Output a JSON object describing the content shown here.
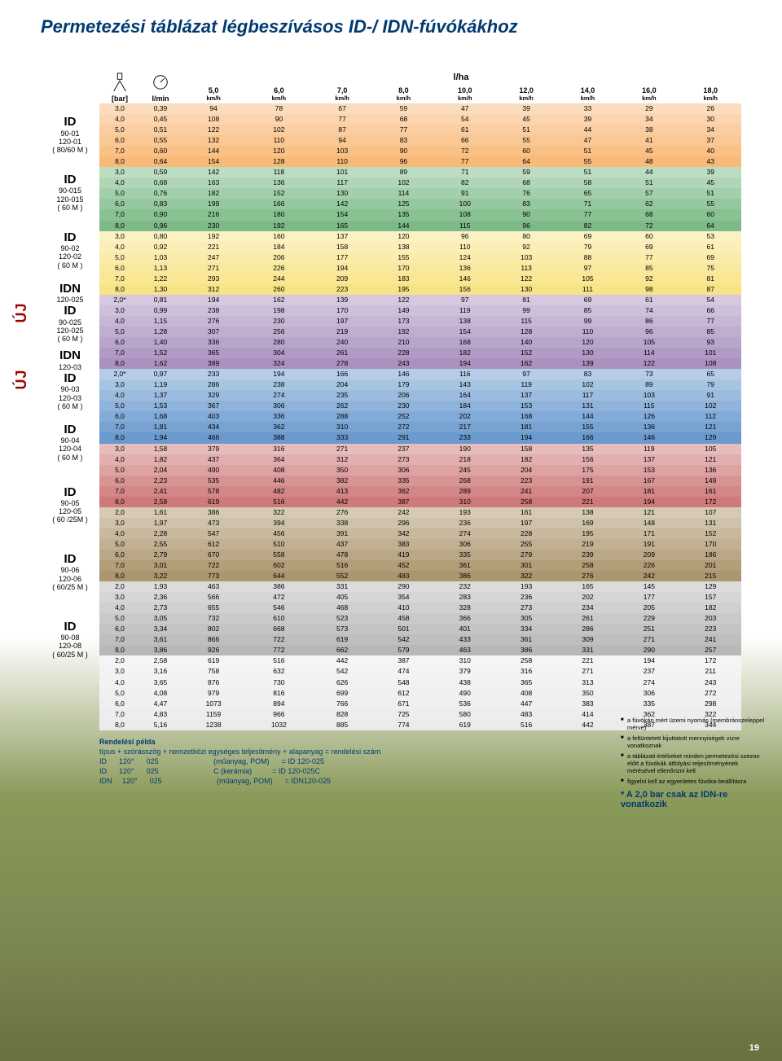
{
  "title": "Permetezési táblázat légbeszívásos ID-/ IDN-fúvókákhoz",
  "table": {
    "header": {
      "unit_bar": "[bar]",
      "unit_lmin": "l/min",
      "unit_lha": "l/ha",
      "speeds": [
        "5,0",
        "6,0",
        "7,0",
        "8,0",
        "10,0",
        "12,0",
        "14,0",
        "16,0",
        "18,0"
      ],
      "kmh": "km/h"
    },
    "groups": [
      {
        "id": "ID",
        "sub1": "90-01",
        "sub2": "120-01",
        "mesh": "( 80/60 M )",
        "color": "#f7b26a",
        "rows": [
          [
            "3,0",
            "0,39",
            "94",
            "78",
            "67",
            "59",
            "47",
            "39",
            "33",
            "29",
            "26"
          ],
          [
            "4,0",
            "0,45",
            "108",
            "90",
            "77",
            "68",
            "54",
            "45",
            "39",
            "34",
            "30"
          ],
          [
            "5,0",
            "0,51",
            "122",
            "102",
            "87",
            "77",
            "61",
            "51",
            "44",
            "38",
            "34"
          ],
          [
            "6,0",
            "0,55",
            "132",
            "110",
            "94",
            "83",
            "66",
            "55",
            "47",
            "41",
            "37"
          ],
          [
            "7,0",
            "0,60",
            "144",
            "120",
            "103",
            "90",
            "72",
            "60",
            "51",
            "45",
            "40"
          ],
          [
            "8,0",
            "0,64",
            "154",
            "128",
            "110",
            "96",
            "77",
            "64",
            "55",
            "48",
            "43"
          ]
        ]
      },
      {
        "id": "ID",
        "sub1": "90-015",
        "sub2": "120-015",
        "mesh": "( 60 M )",
        "color": "#6db37a",
        "rows": [
          [
            "3,0",
            "0,59",
            "142",
            "118",
            "101",
            "89",
            "71",
            "59",
            "51",
            "44",
            "39"
          ],
          [
            "4,0",
            "0,68",
            "163",
            "136",
            "117",
            "102",
            "82",
            "68",
            "58",
            "51",
            "45"
          ],
          [
            "5,0",
            "0,76",
            "182",
            "152",
            "130",
            "114",
            "91",
            "76",
            "65",
            "57",
            "51"
          ],
          [
            "6,0",
            "0,83",
            "199",
            "166",
            "142",
            "125",
            "100",
            "83",
            "71",
            "62",
            "55"
          ],
          [
            "7,0",
            "0,90",
            "216",
            "180",
            "154",
            "135",
            "108",
            "90",
            "77",
            "68",
            "60"
          ],
          [
            "8,0",
            "0,96",
            "230",
            "192",
            "165",
            "144",
            "115",
            "96",
            "82",
            "72",
            "64"
          ]
        ]
      },
      {
        "id": "ID",
        "sub1": "90-02",
        "sub2": "120-02",
        "mesh": "( 60 M )",
        "color": "#f7e17a",
        "rows": [
          [
            "3,0",
            "0,80",
            "192",
            "160",
            "137",
            "120",
            "96",
            "80",
            "69",
            "60",
            "53"
          ],
          [
            "4,0",
            "0,92",
            "221",
            "184",
            "158",
            "138",
            "110",
            "92",
            "79",
            "69",
            "61"
          ],
          [
            "5,0",
            "1,03",
            "247",
            "206",
            "177",
            "155",
            "124",
            "103",
            "88",
            "77",
            "69"
          ],
          [
            "6,0",
            "1,13",
            "271",
            "226",
            "194",
            "170",
            "136",
            "113",
            "97",
            "85",
            "75"
          ],
          [
            "7,0",
            "1,22",
            "293",
            "244",
            "209",
            "183",
            "146",
            "122",
            "105",
            "92",
            "81"
          ],
          [
            "8,0",
            "1,30",
            "312",
            "260",
            "223",
            "195",
            "156",
            "130",
            "111",
            "98",
            "87"
          ]
        ]
      },
      {
        "id": "IDN",
        "sub1": "120-025",
        "sub2": "ID",
        "sub3": "90-025",
        "sub4": "120-025",
        "mesh": "( 60 M )",
        "color": "#a185b8",
        "uj": true,
        "rows": [
          [
            "2,0*",
            "0,81",
            "194",
            "162",
            "139",
            "122",
            "97",
            "81",
            "69",
            "61",
            "54"
          ],
          [
            "3,0",
            "0,99",
            "238",
            "198",
            "170",
            "149",
            "119",
            "99",
            "85",
            "74",
            "66"
          ],
          [
            "4,0",
            "1,15",
            "276",
            "230",
            "197",
            "173",
            "138",
            "115",
            "99",
            "86",
            "77"
          ],
          [
            "5,0",
            "1,28",
            "307",
            "256",
            "219",
            "192",
            "154",
            "128",
            "110",
            "96",
            "85"
          ],
          [
            "6,0",
            "1,40",
            "336",
            "280",
            "240",
            "210",
            "168",
            "140",
            "120",
            "105",
            "93"
          ],
          [
            "7,0",
            "1,52",
            "365",
            "304",
            "261",
            "228",
            "182",
            "152",
            "130",
            "114",
            "101"
          ],
          [
            "8,0",
            "1,62",
            "389",
            "324",
            "278",
            "243",
            "194",
            "162",
            "139",
            "122",
            "108"
          ]
        ]
      },
      {
        "id": "IDN",
        "sub1": "120-03",
        "sub2": "ID",
        "sub3": "90-03",
        "sub4": "120-03",
        "mesh": "( 60 M )",
        "color": "#5a8fc9",
        "uj": true,
        "rows": [
          [
            "2,0*",
            "0,97",
            "233",
            "194",
            "166",
            "146",
            "116",
            "97",
            "83",
            "73",
            "65"
          ],
          [
            "3,0",
            "1,19",
            "286",
            "238",
            "204",
            "179",
            "143",
            "119",
            "102",
            "89",
            "79"
          ],
          [
            "4,0",
            "1,37",
            "329",
            "274",
            "235",
            "206",
            "164",
            "137",
            "117",
            "103",
            "91"
          ],
          [
            "5,0",
            "1,53",
            "367",
            "306",
            "262",
            "230",
            "184",
            "153",
            "131",
            "115",
            "102"
          ],
          [
            "6,0",
            "1,68",
            "403",
            "336",
            "288",
            "252",
            "202",
            "168",
            "144",
            "126",
            "112"
          ],
          [
            "7,0",
            "1,81",
            "434",
            "362",
            "310",
            "272",
            "217",
            "181",
            "155",
            "136",
            "121"
          ],
          [
            "8,0",
            "1,94",
            "466",
            "388",
            "333",
            "291",
            "233",
            "194",
            "166",
            "146",
            "129"
          ]
        ]
      },
      {
        "id": "ID",
        "sub1": "90-04",
        "sub2": "120-04",
        "mesh": "( 60 M )",
        "color": "#c96b6b",
        "rows": [
          [
            "3,0",
            "1,58",
            "379",
            "316",
            "271",
            "237",
            "190",
            "158",
            "135",
            "119",
            "105"
          ],
          [
            "4,0",
            "1,82",
            "437",
            "364",
            "312",
            "273",
            "218",
            "182",
            "156",
            "137",
            "121"
          ],
          [
            "5,0",
            "2,04",
            "490",
            "408",
            "350",
            "306",
            "245",
            "204",
            "175",
            "153",
            "136"
          ],
          [
            "6,0",
            "2,23",
            "535",
            "446",
            "382",
            "335",
            "268",
            "223",
            "191",
            "167",
            "149"
          ],
          [
            "7,0",
            "2,41",
            "578",
            "482",
            "413",
            "362",
            "289",
            "241",
            "207",
            "181",
            "161"
          ],
          [
            "8,0",
            "2,58",
            "619",
            "516",
            "442",
            "387",
            "310",
            "258",
            "221",
            "194",
            "172"
          ]
        ]
      },
      {
        "id": "ID",
        "sub1": "90-05",
        "sub2": "120-05",
        "mesh": "( 60 /25M )",
        "color": "#a38a5e",
        "rows": [
          [
            "2,0",
            "1,61",
            "386",
            "322",
            "276",
            "242",
            "193",
            "161",
            "138",
            "121",
            "107"
          ],
          [
            "3,0",
            "1,97",
            "473",
            "394",
            "338",
            "296",
            "236",
            "197",
            "169",
            "148",
            "131"
          ],
          [
            "4,0",
            "2,28",
            "547",
            "456",
            "391",
            "342",
            "274",
            "228",
            "195",
            "171",
            "152"
          ],
          [
            "5,0",
            "2,55",
            "612",
            "510",
            "437",
            "383",
            "306",
            "255",
            "219",
            "191",
            "170"
          ],
          [
            "6,0",
            "2,79",
            "670",
            "558",
            "478",
            "419",
            "335",
            "279",
            "239",
            "209",
            "186"
          ],
          [
            "7,0",
            "3,01",
            "722",
            "602",
            "516",
            "452",
            "361",
            "301",
            "258",
            "226",
            "201"
          ],
          [
            "8,0",
            "3,22",
            "773",
            "644",
            "552",
            "483",
            "386",
            "322",
            "276",
            "242",
            "215"
          ]
        ]
      },
      {
        "id": "ID",
        "sub1": "90-06",
        "sub2": "120-06",
        "mesh": "( 60/25 M )",
        "color": "#b0b0b0",
        "rows": [
          [
            "2,0",
            "1,93",
            "463",
            "386",
            "331",
            "290",
            "232",
            "193",
            "165",
            "145",
            "129"
          ],
          [
            "3,0",
            "2,36",
            "566",
            "472",
            "405",
            "354",
            "283",
            "236",
            "202",
            "177",
            "157"
          ],
          [
            "4,0",
            "2,73",
            "655",
            "546",
            "468",
            "410",
            "328",
            "273",
            "234",
            "205",
            "182"
          ],
          [
            "5,0",
            "3,05",
            "732",
            "610",
            "523",
            "458",
            "366",
            "305",
            "261",
            "229",
            "203"
          ],
          [
            "6,0",
            "3,34",
            "802",
            "668",
            "573",
            "501",
            "401",
            "334",
            "286",
            "251",
            "223"
          ],
          [
            "7,0",
            "3,61",
            "866",
            "722",
            "619",
            "542",
            "433",
            "361",
            "309",
            "271",
            "241"
          ],
          [
            "8,0",
            "3,86",
            "926",
            "772",
            "662",
            "579",
            "463",
            "386",
            "331",
            "290",
            "257"
          ]
        ]
      },
      {
        "id": "ID",
        "sub1": "90-08",
        "sub2": "120-08",
        "mesh": "( 60/25 M )",
        "color": "#e9e9e9",
        "rows": [
          [
            "2,0",
            "2,58",
            "619",
            "516",
            "442",
            "387",
            "310",
            "258",
            "221",
            "194",
            "172"
          ],
          [
            "3,0",
            "3,16",
            "758",
            "632",
            "542",
            "474",
            "379",
            "316",
            "271",
            "237",
            "211"
          ],
          [
            "4,0",
            "3,65",
            "876",
            "730",
            "626",
            "548",
            "438",
            "365",
            "313",
            "274",
            "243"
          ],
          [
            "5,0",
            "4,08",
            "979",
            "816",
            "699",
            "612",
            "490",
            "408",
            "350",
            "306",
            "272"
          ],
          [
            "6,0",
            "4,47",
            "1073",
            "894",
            "766",
            "671",
            "536",
            "447",
            "383",
            "335",
            "298"
          ],
          [
            "7,0",
            "4,83",
            "1159",
            "966",
            "828",
            "725",
            "580",
            "483",
            "414",
            "362",
            "322"
          ],
          [
            "8,0",
            "5,16",
            "1238",
            "1032",
            "885",
            "774",
            "619",
            "516",
            "442",
            "387",
            "344"
          ]
        ]
      }
    ]
  },
  "notes": [
    "a fúvókán mért üzemi nyomás (membránszeleppel mérve)",
    "a feltüntetett kijuttatott mennyiségek vízre vonatkoznak",
    "a táblázati értékeket minden permetezési szezon előtt a fúvókák átfolyási teljesítményének mérésével ellenőrizni kell",
    "figyelni kell az egyenletes fúvóka-beállításra"
  ],
  "asterisk": "* A 2,0 bar csak az IDN-re vonatkozik",
  "order": {
    "heading": "Rendelési példa",
    "line1": "típus + szórásszög + nemzetközi egységes teljesítmény + alapanyag           = rendelési szám",
    "lines": "ID      120°      025                           (műanyag, POM)      = ID 120-025\nID      120°      025                           C (kerámia)          = ID 120-025C\nIDN     120°      025                           (műanyag, POM)      = IDN120-025"
  },
  "pagenum": "19"
}
